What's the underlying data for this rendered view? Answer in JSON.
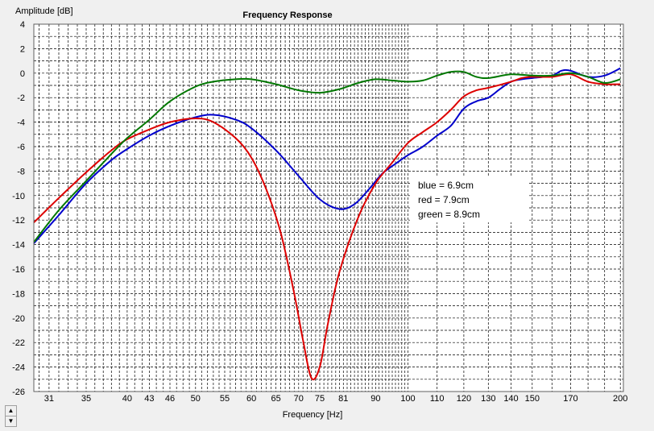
{
  "chart_data": {
    "type": "line",
    "title": "Frequency Response",
    "xlabel": "Frequency [Hz]",
    "ylabel": "Amplitude [dB]",
    "xscale": "log",
    "xlim": [
      29.5,
      202
    ],
    "ylim": [
      -26,
      4
    ],
    "yticks": [
      4,
      2,
      0,
      -2,
      -4,
      -6,
      -8,
      -10,
      -12,
      -14,
      -16,
      -18,
      -20,
      -22,
      -24,
      -26
    ],
    "xticks": [
      31,
      35,
      40,
      43,
      46,
      50,
      55,
      60,
      65,
      70,
      75,
      81,
      90,
      100,
      110,
      120,
      130,
      140,
      150,
      170,
      200
    ],
    "grid": true,
    "annotations": [
      "blue = 6.9cm",
      "red = 7.9cm",
      "green = 8.9cm"
    ],
    "series": [
      {
        "color": "#0000cc",
        "points": [
          [
            29.5,
            -13.9
          ],
          [
            32,
            -11.6
          ],
          [
            35,
            -9.0
          ],
          [
            38,
            -7.1
          ],
          [
            40,
            -6.2
          ],
          [
            43,
            -5.1
          ],
          [
            46,
            -4.3
          ],
          [
            50,
            -3.6
          ],
          [
            53,
            -3.4
          ],
          [
            57,
            -3.8
          ],
          [
            60,
            -4.5
          ],
          [
            65,
            -6.3
          ],
          [
            70,
            -8.4
          ],
          [
            75,
            -10.3
          ],
          [
            80,
            -11.1
          ],
          [
            84,
            -10.7
          ],
          [
            88,
            -9.5
          ],
          [
            92,
            -8.2
          ],
          [
            96,
            -7.4
          ],
          [
            100,
            -6.7
          ],
          [
            105,
            -6.0
          ],
          [
            110,
            -5.1
          ],
          [
            115,
            -4.3
          ],
          [
            120,
            -2.9
          ],
          [
            125,
            -2.3
          ],
          [
            130,
            -2.0
          ],
          [
            135,
            -1.3
          ],
          [
            140,
            -0.7
          ],
          [
            145,
            -0.5
          ],
          [
            150,
            -0.4
          ],
          [
            160,
            -0.2
          ],
          [
            165,
            0.2
          ],
          [
            170,
            0.2
          ],
          [
            180,
            -0.3
          ],
          [
            190,
            -0.2
          ],
          [
            200,
            0.4
          ]
        ]
      },
      {
        "color": "#dd0000",
        "points": [
          [
            29.5,
            -12.2
          ],
          [
            32,
            -10.2
          ],
          [
            35,
            -8.1
          ],
          [
            38,
            -6.3
          ],
          [
            40,
            -5.4
          ],
          [
            43,
            -4.6
          ],
          [
            46,
            -4.0
          ],
          [
            50,
            -3.7
          ],
          [
            53,
            -4.0
          ],
          [
            57,
            -5.3
          ],
          [
            60,
            -6.9
          ],
          [
            63,
            -9.5
          ],
          [
            66,
            -13.0
          ],
          [
            69,
            -18.0
          ],
          [
            71,
            -21.8
          ],
          [
            73,
            -24.9
          ],
          [
            75,
            -24.0
          ],
          [
            77,
            -20.5
          ],
          [
            80,
            -16.2
          ],
          [
            85,
            -11.8
          ],
          [
            90,
            -9.0
          ],
          [
            95,
            -7.3
          ],
          [
            100,
            -5.7
          ],
          [
            105,
            -4.8
          ],
          [
            110,
            -4.0
          ],
          [
            115,
            -3.0
          ],
          [
            120,
            -1.9
          ],
          [
            125,
            -1.4
          ],
          [
            130,
            -1.2
          ],
          [
            140,
            -0.7
          ],
          [
            145,
            -0.4
          ],
          [
            150,
            -0.3
          ],
          [
            160,
            -0.3
          ],
          [
            170,
            -0.1
          ],
          [
            180,
            -0.7
          ],
          [
            190,
            -0.9
          ],
          [
            200,
            -0.9
          ]
        ]
      },
      {
        "color": "#007700",
        "points": [
          [
            29.5,
            -13.8
          ],
          [
            32,
            -11.2
          ],
          [
            35,
            -8.8
          ],
          [
            38,
            -6.6
          ],
          [
            40,
            -5.3
          ],
          [
            43,
            -3.8
          ],
          [
            46,
            -2.3
          ],
          [
            50,
            -1.1
          ],
          [
            53,
            -0.7
          ],
          [
            57,
            -0.5
          ],
          [
            60,
            -0.5
          ],
          [
            65,
            -0.9
          ],
          [
            70,
            -1.4
          ],
          [
            75,
            -1.6
          ],
          [
            80,
            -1.3
          ],
          [
            85,
            -0.8
          ],
          [
            90,
            -0.5
          ],
          [
            95,
            -0.6
          ],
          [
            100,
            -0.7
          ],
          [
            105,
            -0.6
          ],
          [
            110,
            -0.2
          ],
          [
            115,
            0.1
          ],
          [
            120,
            0.1
          ],
          [
            125,
            -0.3
          ],
          [
            130,
            -0.4
          ],
          [
            140,
            -0.1
          ],
          [
            150,
            -0.2
          ],
          [
            160,
            -0.2
          ],
          [
            170,
            0.0
          ],
          [
            180,
            -0.3
          ],
          [
            190,
            -0.8
          ],
          [
            200,
            -0.5
          ]
        ]
      }
    ]
  }
}
